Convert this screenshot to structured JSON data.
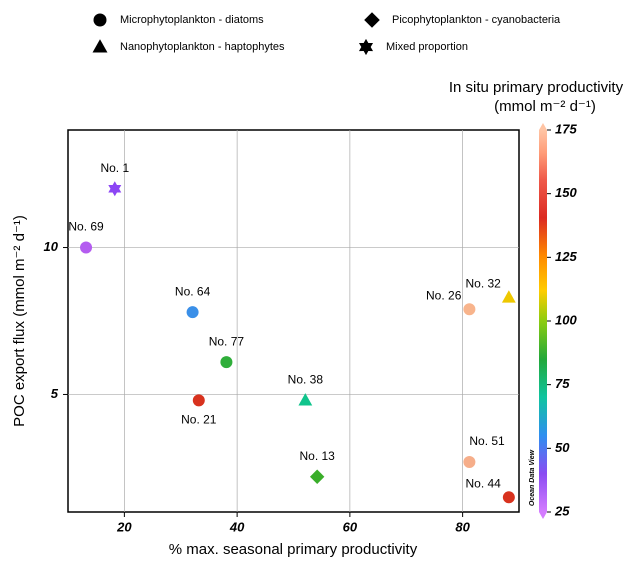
{
  "chart_data": {
    "type": "scatter",
    "x_label": "% max. seasonal primary productivity",
    "y_label": "POC export flux (mmol m⁻² d⁻¹)",
    "colorbar_title": [
      "In situ primary productivity",
      "(mmol m⁻² d⁻¹)"
    ],
    "colorbar_note": "Ocean Data View",
    "colorbar_lim": [
      25,
      175
    ],
    "colorbar_ticks": [
      25,
      50,
      75,
      100,
      125,
      150,
      175
    ],
    "xlim": [
      10,
      90
    ],
    "xticks": [
      20,
      40,
      60,
      80
    ],
    "ylim": [
      1,
      14
    ],
    "yticks": [
      5,
      10
    ],
    "grid": true,
    "series": [
      {
        "name": "Microphytoplankton - diatoms",
        "marker": "circle",
        "labels": [
          "No. 69",
          "No. 64",
          "No. 77",
          "No. 21",
          "No. 26",
          "No. 51",
          "No. 44"
        ],
        "x": [
          13.2,
          32.1,
          38.1,
          33.2,
          81.2,
          81.2,
          88.2
        ],
        "values": [
          10,
          7.8,
          6.1,
          4.8,
          7.9,
          2.7,
          1.5
        ],
        "colors": [
          "#b45cf0",
          "#3a8fe8",
          "#2fae3a",
          "#d8321e",
          "#f8b48c",
          "#f6ae8a",
          "#d8321e"
        ]
      },
      {
        "name": "Picophytoplankton - cyanobacteria",
        "marker": "diamond",
        "labels": [
          "No. 13"
        ],
        "x": [
          54.2
        ],
        "values": [
          2.2
        ],
        "colors": [
          "#3aae2a"
        ]
      },
      {
        "name": "Nanophytoplankton - haptophytes",
        "marker": "triangle",
        "labels": [
          "No. 38",
          "No. 32"
        ],
        "x": [
          52.1,
          88.2
        ],
        "values": [
          4.8,
          8.3
        ],
        "colors": [
          "#10c48c",
          "#eec800"
        ]
      },
      {
        "name": "Mixed proportion",
        "marker": "star",
        "labels": [
          "No. 1"
        ],
        "x": [
          18.3
        ],
        "values": [
          12
        ],
        "colors": [
          "#8c46f4"
        ]
      }
    ]
  }
}
